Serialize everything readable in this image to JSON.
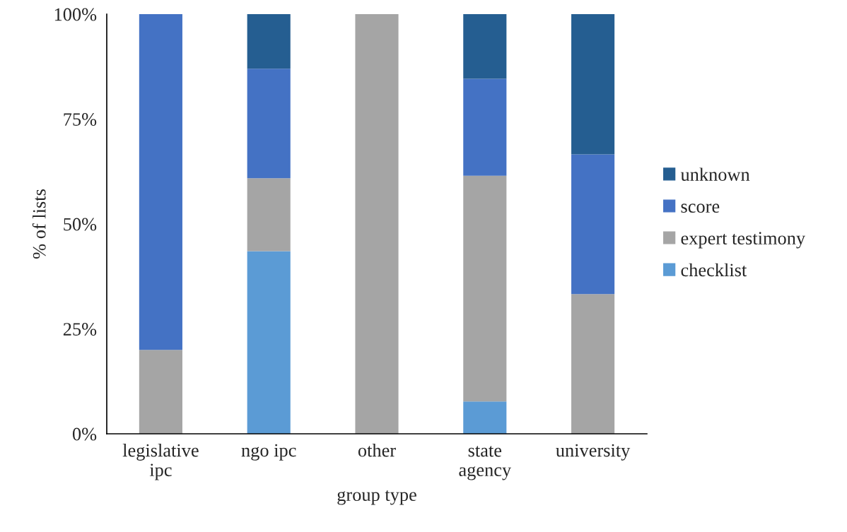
{
  "chart_data": {
    "type": "bar",
    "stacked": true,
    "xlabel": "group type",
    "ylabel": "% of lists",
    "categories": [
      "legislative\nipc",
      "ngo ipc",
      "other",
      "state\nagency",
      "university"
    ],
    "series": [
      {
        "name": "checklist",
        "color": "#5b9bd5",
        "values": [
          null,
          43.5,
          null,
          7.7,
          null
        ]
      },
      {
        "name": "expert testimony",
        "color": "#a5a5a5",
        "values": [
          20,
          17.4,
          100,
          53.8,
          33.3
        ]
      },
      {
        "name": "score",
        "color": "#4472c4",
        "values": [
          80,
          26.1,
          null,
          23.1,
          33.3
        ]
      },
      {
        "name": "unknown",
        "color": "#255e91",
        "values": [
          null,
          13.0,
          null,
          15.4,
          33.4
        ]
      }
    ],
    "ylim": [
      0,
      100
    ],
    "yticks": [
      {
        "value": 0,
        "label": "0%"
      },
      {
        "value": 25,
        "label": "25%"
      },
      {
        "value": 50,
        "label": "50%"
      },
      {
        "value": 75,
        "label": "75%"
      },
      {
        "value": 100,
        "label": "100%"
      }
    ],
    "grid": false,
    "legend": "right"
  }
}
